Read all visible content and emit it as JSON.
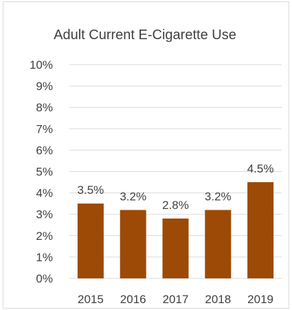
{
  "chart_data": {
    "type": "bar",
    "title": "Adult Current E-Cigarette Use",
    "xlabel": "",
    "ylabel": "",
    "categories": [
      "2015",
      "2016",
      "2017",
      "2018",
      "2019"
    ],
    "values": [
      3.5,
      3.2,
      2.8,
      3.2,
      4.5
    ],
    "data_labels": [
      "3.5%",
      "3.2%",
      "2.8%",
      "3.2%",
      "4.5%"
    ],
    "ylim": [
      0,
      10
    ],
    "y_ticks": [
      "0%",
      "1%",
      "2%",
      "3%",
      "4%",
      "5%",
      "6%",
      "7%",
      "8%",
      "9%",
      "10%"
    ],
    "grid": true,
    "legend": "none",
    "colors": {
      "bar": "#9c4a06",
      "grid": "#d9d9d9",
      "text": "#404040"
    }
  }
}
